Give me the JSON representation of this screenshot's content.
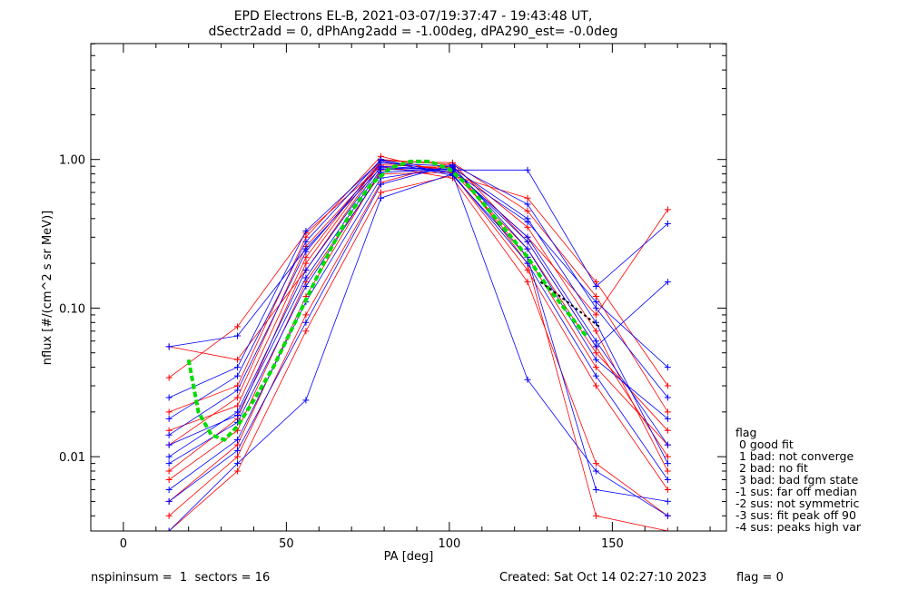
{
  "title_lines": [
    "EPD Electrons EL-B, 2021-03-07/19:37:47 - 19:43:48 UT,",
    "dSectr2add = 0, dPhAng2add = -1.00deg, dPA290_est=  -0.0deg"
  ],
  "footer": {
    "left": "nspininsum =  1  sectors = 16",
    "created": "Created: Sat Oct 14 02:27:10 2023",
    "flag": "flag = 0"
  },
  "legend": {
    "title": "flag",
    "items": [
      " 0 good fit",
      " 1 bad: not converge",
      " 2 bad: no fit",
      " 3 bad: bad fgm state",
      "-1 sus: far off median",
      "-2 sus: not symmetric",
      "-3 sus: fit peak off 90",
      "-4 sus: peaks high var"
    ]
  },
  "colors": {
    "series_a": "#ff0000",
    "series_b": "#0000ff",
    "fit": "#00dd00",
    "marker": "#000000"
  },
  "chart_data": {
    "type": "line",
    "xlabel": "PA [deg]",
    "ylabel": "nflux [#/(cm^2 s sr MeV)]",
    "xlim": [
      -10,
      185
    ],
    "ylim_log10": [
      -2.5,
      0.78
    ],
    "ylog": true,
    "xticks": [
      0,
      50,
      100,
      150
    ],
    "xtick_labels": [
      "0",
      "50",
      "100",
      "150"
    ],
    "yticks": [
      0.01,
      0.1,
      1.0
    ],
    "ytick_labels": [
      "0.01",
      "0.10",
      "1.00"
    ],
    "pa_bins": [
      14,
      35,
      56,
      79,
      101,
      124,
      145,
      167
    ],
    "series": [
      {
        "color": "red",
        "values": [
          0.008,
          0.018,
          0.2,
          0.98,
          0.95,
          0.28,
          0.055,
          0.01
        ]
      },
      {
        "color": "red",
        "values": [
          0.012,
          0.025,
          0.26,
          0.92,
          0.88,
          0.22,
          0.04,
          0.012
        ]
      },
      {
        "color": "red",
        "values": [
          0.005,
          0.012,
          0.12,
          0.85,
          0.9,
          0.35,
          0.07,
          0.008
        ]
      },
      {
        "color": "red",
        "values": [
          0.02,
          0.03,
          0.3,
          1.05,
          0.8,
          0.18,
          0.03,
          0.006
        ]
      },
      {
        "color": "red",
        "values": [
          0.004,
          0.01,
          0.09,
          0.7,
          0.95,
          0.45,
          0.12,
          0.02
        ]
      },
      {
        "color": "red",
        "values": [
          0.034,
          0.075,
          0.32,
          0.9,
          0.75,
          0.15,
          0.009,
          0.004
        ]
      },
      {
        "color": "red",
        "values": [
          0.055,
          0.045,
          0.18,
          0.95,
          0.85,
          0.3,
          0.09,
          0.46
        ]
      },
      {
        "color": "red",
        "values": [
          0.007,
          0.015,
          0.15,
          0.8,
          0.82,
          0.25,
          0.05,
          0.015
        ]
      },
      {
        "color": "red",
        "values": [
          0.003,
          0.008,
          0.07,
          0.6,
          0.78,
          0.55,
          0.15,
          0.03
        ]
      },
      {
        "color": "red",
        "values": [
          0.015,
          0.022,
          0.22,
          1.0,
          0.92,
          0.2,
          0.004,
          0.003
        ]
      },
      {
        "color": "blue",
        "values": [
          0.01,
          0.02,
          0.18,
          0.9,
          0.85,
          0.3,
          0.06,
          0.012
        ]
      },
      {
        "color": "blue",
        "values": [
          0.014,
          0.028,
          0.24,
          0.95,
          0.9,
          0.25,
          0.045,
          0.018
        ]
      },
      {
        "color": "blue",
        "values": [
          0.006,
          0.013,
          0.11,
          0.75,
          0.88,
          0.4,
          0.08,
          0.009
        ]
      },
      {
        "color": "blue",
        "values": [
          0.018,
          0.035,
          0.28,
          1.0,
          0.8,
          0.2,
          0.035,
          0.007
        ]
      },
      {
        "color": "blue",
        "values": [
          0.005,
          0.011,
          0.08,
          0.68,
          0.92,
          0.5,
          0.1,
          0.025
        ]
      },
      {
        "color": "blue",
        "values": [
          0.055,
          0.065,
          0.25,
          0.88,
          0.85,
          0.85,
          0.14,
          0.37
        ]
      },
      {
        "color": "blue",
        "values": [
          0.009,
          0.017,
          0.14,
          0.82,
          0.86,
          0.28,
          0.055,
          0.15
        ]
      },
      {
        "color": "blue",
        "values": [
          0.003,
          0.009,
          0.024,
          0.55,
          0.8,
          0.033,
          0.008,
          0.004
        ]
      },
      {
        "color": "blue",
        "values": [
          0.025,
          0.04,
          0.33,
          0.98,
          0.78,
          0.22,
          0.006,
          0.005
        ]
      },
      {
        "color": "blue",
        "values": [
          0.012,
          0.019,
          0.16,
          0.86,
          0.83,
          0.38,
          0.11,
          0.04
        ]
      }
    ],
    "fit": {
      "color": "green",
      "x": [
        20,
        23,
        27,
        31,
        35,
        40,
        46,
        52,
        58,
        64,
        70,
        76,
        82,
        88,
        94,
        100,
        106,
        112,
        118,
        124,
        130,
        136,
        142
      ],
      "y": [
        0.045,
        0.02,
        0.014,
        0.013,
        0.016,
        0.024,
        0.04,
        0.075,
        0.14,
        0.26,
        0.45,
        0.68,
        0.88,
        0.97,
        0.97,
        0.86,
        0.66,
        0.46,
        0.32,
        0.22,
        0.14,
        0.095,
        0.065
      ]
    },
    "median": {
      "color": "black",
      "x": [
        128,
        134,
        140,
        146
      ],
      "y": [
        0.15,
        0.12,
        0.095,
        0.075
      ]
    }
  }
}
